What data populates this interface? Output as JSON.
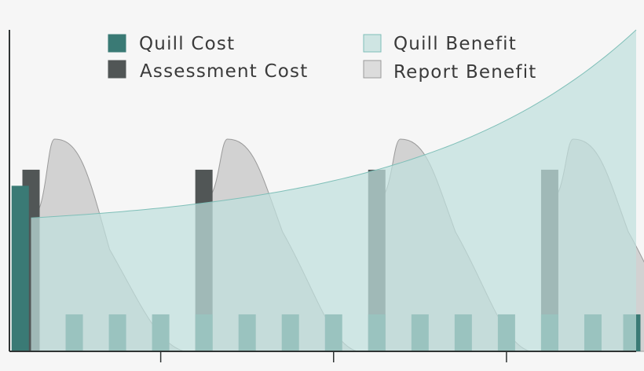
{
  "chart_data": {
    "type": "area",
    "title": "",
    "xlabel": "",
    "ylabel": "",
    "xlim": [
      0,
      14.5
    ],
    "ylim": [
      0,
      1
    ],
    "grid": false,
    "legend_position": "top",
    "x_ticks": [
      3.5,
      7.5,
      11.5
    ],
    "legend": [
      {
        "key": "quill_cost",
        "label": "Quill Cost",
        "swatch": "#3a7a75",
        "stroke": "#3a7a75"
      },
      {
        "key": "assessment_cost",
        "label": "Assessment Cost",
        "swatch": "#515656",
        "stroke": "#515656"
      },
      {
        "key": "quill_benefit",
        "label": "Quill Benefit",
        "swatch": "#cfe5e3",
        "stroke": "#7fbfb8"
      },
      {
        "key": "report_benefit",
        "label": "Report Benefit",
        "swatch": "#dcdcdc",
        "stroke": "#9a9a9a"
      }
    ],
    "series": [
      {
        "key": "quill_benefit",
        "color": "#7fbfb8",
        "fill": "#bfdfdc",
        "x_start": 0.5,
        "x_end": 14.5,
        "y_start": 0.415,
        "y_end": 1.0,
        "growth": 2.8
      },
      {
        "key": "report_benefit",
        "color": "#9a9a9a",
        "fill": "#d2d2d2",
        "pulses": [
          {
            "x": 0.5,
            "base": 0.415,
            "peak": 0.66
          },
          {
            "x": 4.5,
            "base": 0.47,
            "peak": 0.66
          },
          {
            "x": 8.5,
            "base": 0.47,
            "peak": 0.66
          },
          {
            "x": 12.5,
            "base": 0.47,
            "peak": 0.66
          }
        ]
      },
      {
        "key": "assessment_cost",
        "color": "#515656",
        "bars": [
          {
            "x": 0.5,
            "y": 0.565
          },
          {
            "x": 4.5,
            "y": 0.565
          },
          {
            "x": 8.5,
            "y": 0.565
          },
          {
            "x": 12.5,
            "y": 0.565
          }
        ]
      },
      {
        "key": "quill_cost",
        "color": "#3a7a75",
        "bars": [
          {
            "x": 0.25,
            "y": 0.515
          },
          {
            "x": 1.5,
            "y": 0.115
          },
          {
            "x": 2.5,
            "y": 0.115
          },
          {
            "x": 3.5,
            "y": 0.115
          },
          {
            "x": 4.5,
            "y": 0.115
          },
          {
            "x": 5.5,
            "y": 0.115
          },
          {
            "x": 6.5,
            "y": 0.115
          },
          {
            "x": 7.5,
            "y": 0.115
          },
          {
            "x": 8.5,
            "y": 0.115
          },
          {
            "x": 9.5,
            "y": 0.115
          },
          {
            "x": 10.5,
            "y": 0.115
          },
          {
            "x": 11.5,
            "y": 0.115
          },
          {
            "x": 12.5,
            "y": 0.115
          },
          {
            "x": 13.5,
            "y": 0.115
          },
          {
            "x": 14.4,
            "y": 0.115
          }
        ]
      }
    ]
  }
}
